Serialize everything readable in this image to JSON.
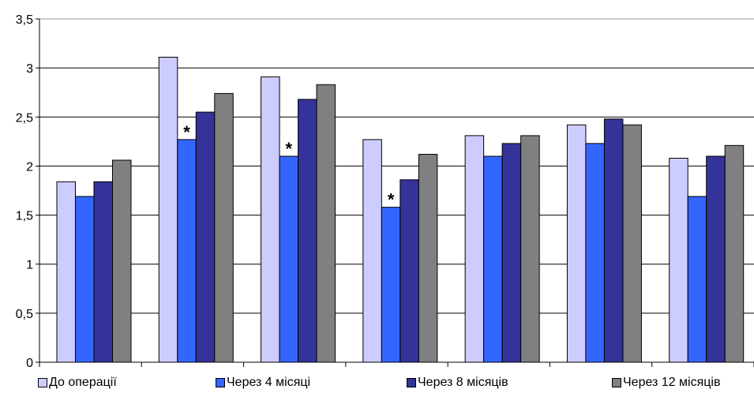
{
  "chart_data": {
    "type": "bar",
    "title": "",
    "xlabel": "",
    "ylabel": "",
    "ylim": [
      0,
      3.5
    ],
    "yticks": [
      "0",
      "0,5",
      "1",
      "1,5",
      "2",
      "2,5",
      "3",
      "3,5"
    ],
    "grid": true,
    "legend_position": "bottom",
    "group_count": 7,
    "series": [
      {
        "name": "До операції",
        "color": "#ccccff",
        "values": [
          1.84,
          3.11,
          2.91,
          2.27,
          2.31,
          2.42,
          2.08
        ]
      },
      {
        "name": "Через 4 місяці",
        "color": "#3366ff",
        "values": [
          1.69,
          2.27,
          2.1,
          1.58,
          2.1,
          2.23,
          1.69
        ]
      },
      {
        "name": "Через 8 місяців",
        "color": "#333399",
        "values": [
          1.84,
          2.55,
          2.68,
          1.86,
          2.23,
          2.48,
          2.1
        ]
      },
      {
        "name": "Через 12 місяців",
        "color": "#808080",
        "values": [
          2.06,
          2.74,
          2.83,
          2.12,
          2.31,
          2.42,
          2.21
        ]
      }
    ],
    "annotations": [
      {
        "text": "*",
        "group": 1,
        "series": 1
      },
      {
        "text": "*",
        "group": 2,
        "series": 1
      },
      {
        "text": "*",
        "group": 3,
        "series": 1
      }
    ]
  }
}
